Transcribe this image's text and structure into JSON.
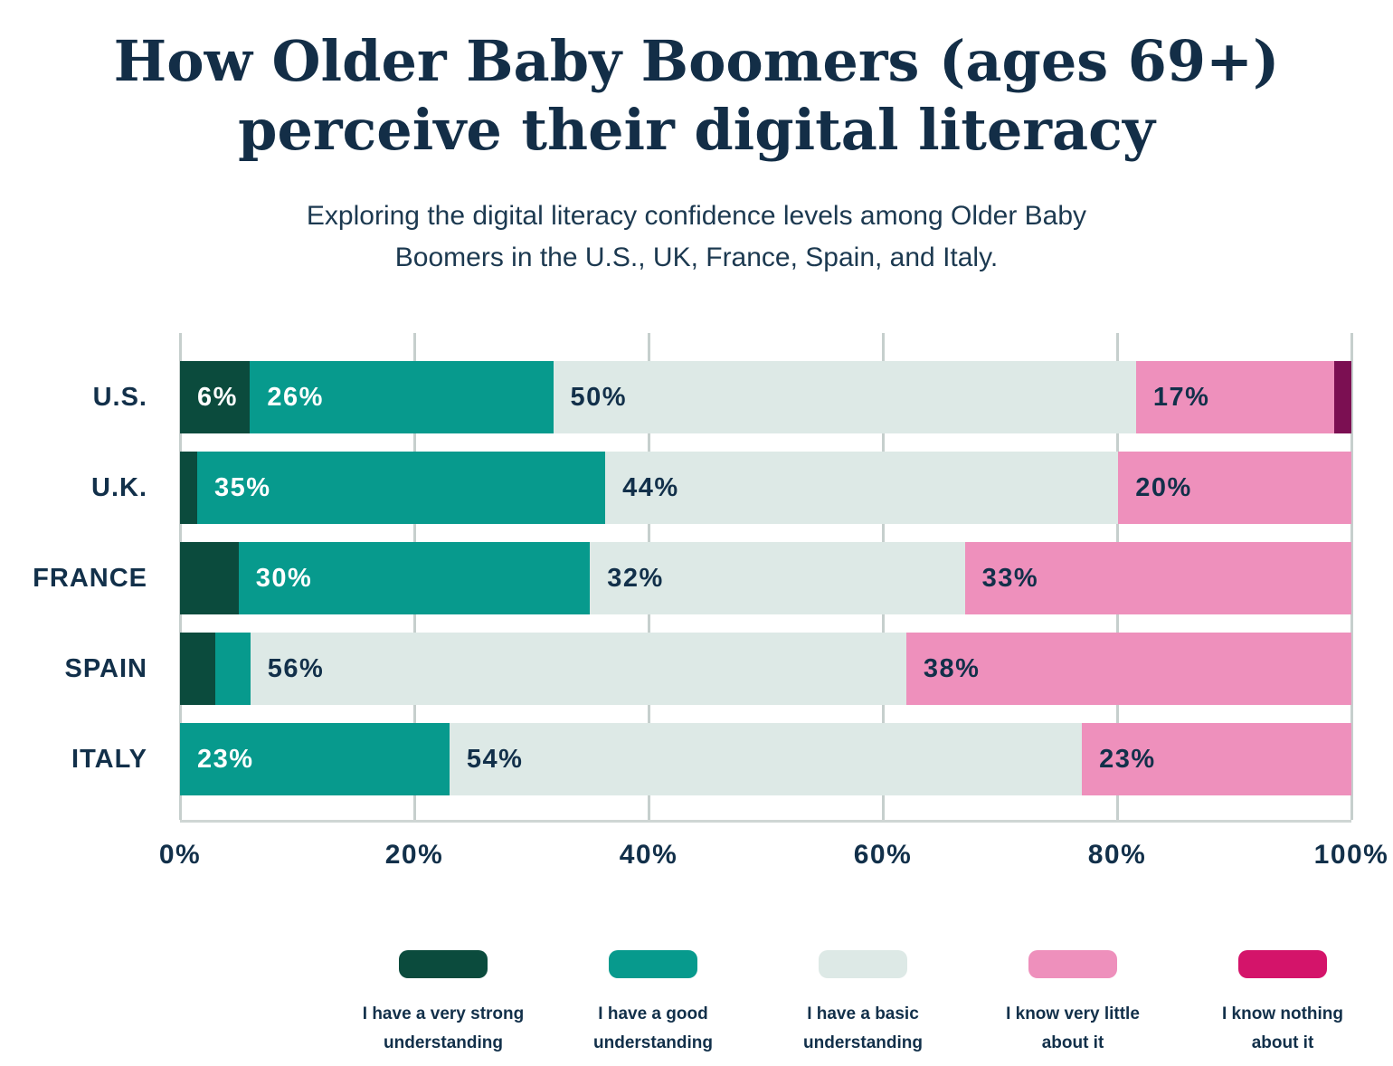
{
  "header": {
    "title_lines": [
      "How Older Baby Boomers (ages 69+)",
      "perceive their digital literacy"
    ],
    "subtitle_lines": [
      "Exploring the digital literacy confidence levels among Older Baby",
      "Boomers in the U.S., UK, France, Spain, and Italy."
    ]
  },
  "colors": {
    "title_navy": "#132e47",
    "label_navy": "#12304a",
    "gridline": "#c6cfcd",
    "axis_line": "#cfd6d4",
    "background": "#ffffff"
  },
  "chart_data": {
    "type": "bar",
    "orientation": "horizontal-stacked",
    "title": "How Older Baby Boomers (ages 69+) perceive their digital literacy",
    "subtitle": "Exploring the digital literacy confidence levels among Older Baby Boomers in the U.S., UK, France, Spain, and Italy.",
    "categories": [
      "U.S.",
      "U.K.",
      "FRANCE",
      "SPAIN",
      "ITALY"
    ],
    "series": [
      {
        "name": "I have a very strong understanding",
        "label_lines": [
          "I have a very strong",
          "understanding"
        ],
        "color": "#0b4b3d",
        "legend_color": "#0b4b3d",
        "value_label_color": "#ffffff",
        "values": [
          6,
          1,
          5,
          3,
          0
        ]
      },
      {
        "name": "I have a good understanding",
        "label_lines": [
          "I have a good",
          "understanding"
        ],
        "color": "#079a8d",
        "legend_color": "#079a8d",
        "value_label_color": "#ffffff",
        "values": [
          26,
          35,
          30,
          3,
          23
        ]
      },
      {
        "name": "I have a basic understanding",
        "label_lines": [
          "I have a basic",
          "understanding"
        ],
        "color": "#dde9e6",
        "legend_color": "#dde9e6",
        "value_label_color": "#12304a",
        "values": [
          50,
          44,
          32,
          56,
          54
        ]
      },
      {
        "name": "I know very little about it",
        "label_lines": [
          "I know very little",
          "about it"
        ],
        "color": "#ee90bc",
        "legend_color": "#ee90bc",
        "value_label_color": "#12304a",
        "values": [
          17,
          20,
          33,
          38,
          23
        ]
      },
      {
        "name": "I know nothing about it",
        "label_lines": [
          "I know nothing",
          "about it"
        ],
        "color": "#7b0f52",
        "legend_color": "#d4146a",
        "value_label_color": "#12304a",
        "values": [
          1,
          0,
          0,
          0,
          0
        ]
      }
    ],
    "x_ticks": [
      "0%",
      "20%",
      "40%",
      "60%",
      "80%",
      "100%"
    ],
    "xlim": [
      0,
      100
    ],
    "grid": true,
    "legend_position": "bottom",
    "value_label_min": 6,
    "value_label_suffix": "%"
  }
}
